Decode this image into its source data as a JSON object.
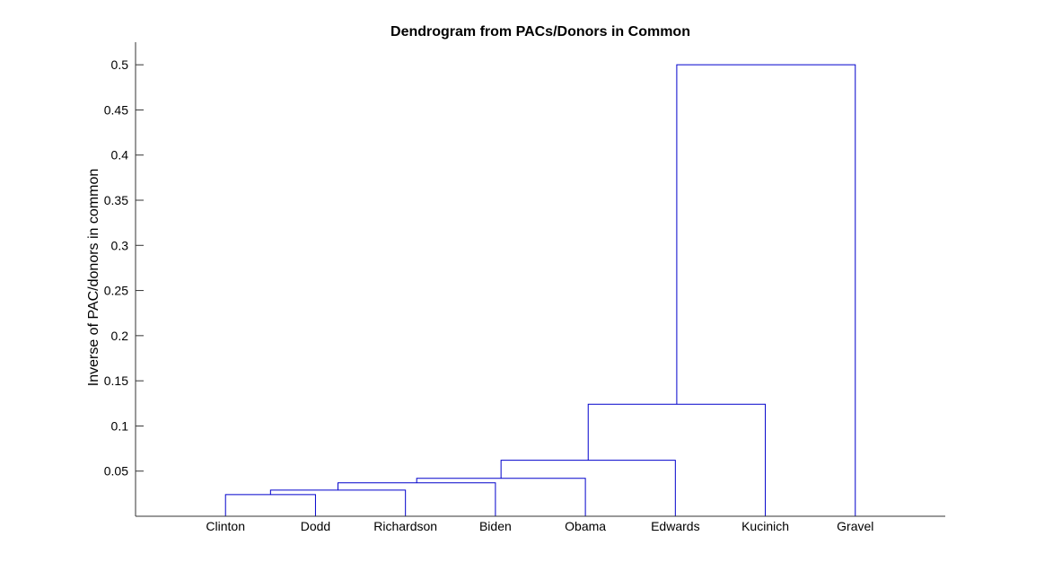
{
  "chart_data": {
    "type": "dendrogram",
    "title": "Dendrogram from PACs/Donors in Common",
    "xlabel": "",
    "ylabel": "Inverse of PAC/donors in common",
    "ylim": [
      0,
      0.525
    ],
    "yticks": [
      0.05,
      0.1,
      0.15,
      0.2,
      0.25,
      0.3,
      0.35,
      0.4,
      0.45,
      0.5
    ],
    "ytick_labels": [
      "0.05",
      "0.1",
      "0.15",
      "0.2",
      "0.25",
      "0.3",
      "0.35",
      "0.4",
      "0.45",
      "0.5"
    ],
    "leaves": [
      "Clinton",
      "Dodd",
      "Richardson",
      "Biden",
      "Obama",
      "Edwards",
      "Kucinich",
      "Gravel"
    ],
    "color": "#0000cc",
    "merges": [
      {
        "left": "Clinton",
        "right": "Dodd",
        "height": 0.024
      },
      {
        "left": "Clinton+Dodd",
        "right": "Richardson",
        "height": 0.029
      },
      {
        "left": "Clinton+Dodd+Richardson",
        "right": "Biden",
        "height": 0.037
      },
      {
        "left": "Clinton+Dodd+Richardson+Biden",
        "right": "Obama",
        "height": 0.042
      },
      {
        "left": "Clinton+Dodd+Richardson+Biden+Obama",
        "right": "Edwards",
        "height": 0.062
      },
      {
        "left": "Clinton+Dodd+Richardson+Biden+Obama+Edwards",
        "right": "Kucinich",
        "height": 0.124
      },
      {
        "left": "Clinton+Dodd+Richardson+Biden+Obama+Edwards+Kucinich",
        "right": "Gravel",
        "height": 0.5
      }
    ],
    "links": [
      {
        "x": [
          1,
          1,
          2,
          2
        ],
        "y": [
          0,
          0.024,
          0.024,
          0
        ],
        "color": "#0000cc"
      },
      {
        "x": [
          1.5,
          1.5,
          3,
          3
        ],
        "y": [
          0.024,
          0.029,
          0.029,
          0
        ],
        "color": "#0000cc"
      },
      {
        "x": [
          2.25,
          2.25,
          4,
          4
        ],
        "y": [
          0.029,
          0.037,
          0.037,
          0
        ],
        "color": "#0000cc"
      },
      {
        "x": [
          3.125,
          3.125,
          5,
          5
        ],
        "y": [
          0.037,
          0.042,
          0.042,
          0
        ],
        "color": "#0000cc"
      },
      {
        "x": [
          4.0625,
          4.0625,
          6,
          6
        ],
        "y": [
          0.042,
          0.062,
          0.062,
          0
        ],
        "color": "#0000cc"
      },
      {
        "x": [
          5.03125,
          5.03125,
          7,
          7
        ],
        "y": [
          0.062,
          0.124,
          0.124,
          0
        ],
        "color": "#0000cc"
      },
      {
        "x": [
          6.015625,
          6.015625,
          8,
          8
        ],
        "y": [
          0.124,
          0.5,
          0.5,
          0
        ],
        "color": "#0000cc"
      }
    ],
    "grid": false,
    "legend": "none"
  }
}
